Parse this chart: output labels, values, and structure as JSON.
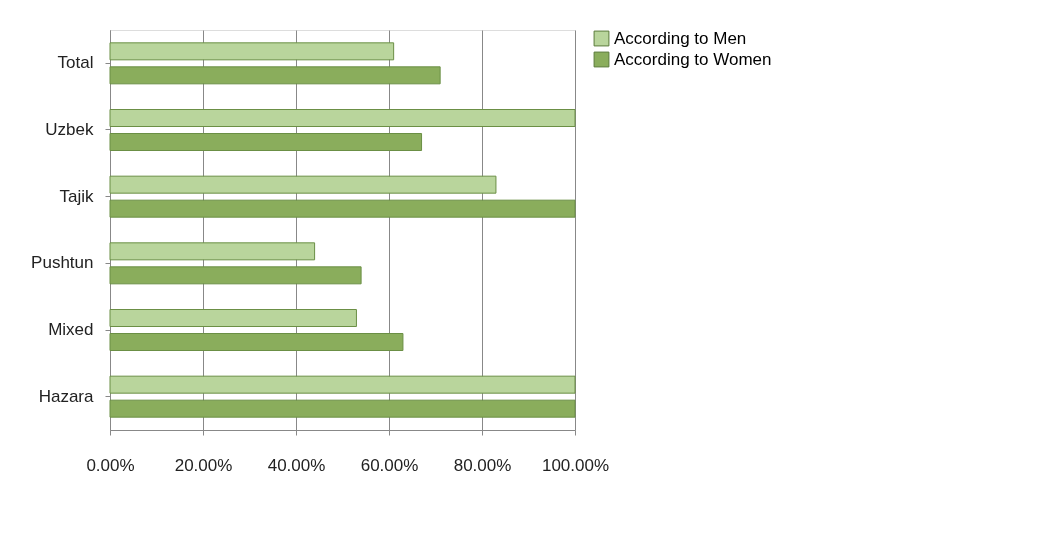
{
  "chart_data": {
    "type": "bar",
    "orientation": "horizontal",
    "categories": [
      "Total",
      "Uzbek",
      "Tajik",
      "Pushtun",
      "Mixed",
      "Hazara"
    ],
    "series": [
      {
        "name": "According to Men",
        "color": "#b9d59c",
        "values": [
          61,
          100,
          83,
          44,
          53,
          100
        ]
      },
      {
        "name": "According to Women",
        "color": "#8aad5c",
        "values": [
          71,
          67,
          100,
          54,
          63,
          100
        ]
      }
    ],
    "xlim": [
      0,
      100
    ],
    "xticks": [
      {
        "value": 0,
        "label": "0.00%"
      },
      {
        "value": 20,
        "label": "20.00%"
      },
      {
        "value": 40,
        "label": "40.00%"
      },
      {
        "value": 60,
        "label": "60.00%"
      },
      {
        "value": 80,
        "label": "80.00%"
      },
      {
        "value": 100,
        "label": "100.00%"
      }
    ],
    "grid": "x",
    "legend": "right"
  }
}
